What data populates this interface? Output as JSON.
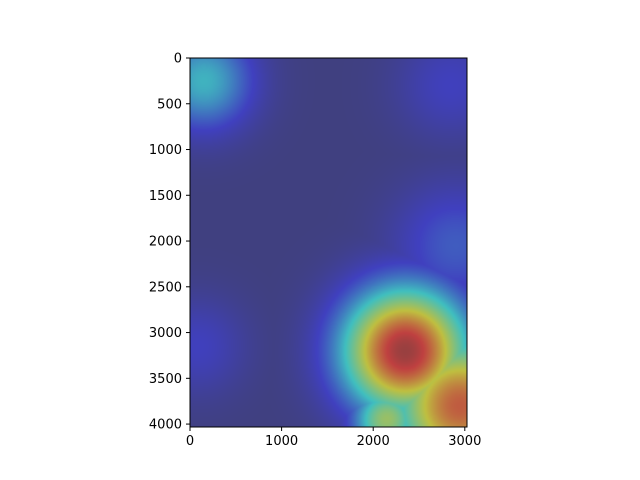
{
  "chart_data": {
    "type": "heatmap",
    "title": "",
    "xlabel": "",
    "ylabel": "",
    "xlim": [
      0,
      3024
    ],
    "ylim": [
      4032,
      0
    ],
    "x_ticks": [
      0,
      1000,
      2000,
      3000
    ],
    "y_ticks": [
      0,
      500,
      1000,
      1500,
      2000,
      2500,
      3000,
      3500,
      4000
    ],
    "colormap": "jet",
    "alpha": 0.5,
    "background_value": 0.0,
    "hotspots": [
      {
        "x": 150,
        "y": 250,
        "value": 0.35,
        "radius": 380
      },
      {
        "x": 2850,
        "y": 300,
        "value": 0.12,
        "radius": 420
      },
      {
        "x": 2900,
        "y": 2050,
        "value": 0.18,
        "radius": 480
      },
      {
        "x": 80,
        "y": 3150,
        "value": 0.12,
        "radius": 380
      },
      {
        "x": 2350,
        "y": 3200,
        "value": 0.95,
        "radius": 480
      },
      {
        "x": 2150,
        "y": 3950,
        "value": 0.55,
        "radius": 260
      },
      {
        "x": 2950,
        "y": 3800,
        "value": 0.82,
        "radius": 520
      },
      {
        "x": 2950,
        "y": 3450,
        "value": 0.55,
        "radius": 300
      }
    ]
  }
}
